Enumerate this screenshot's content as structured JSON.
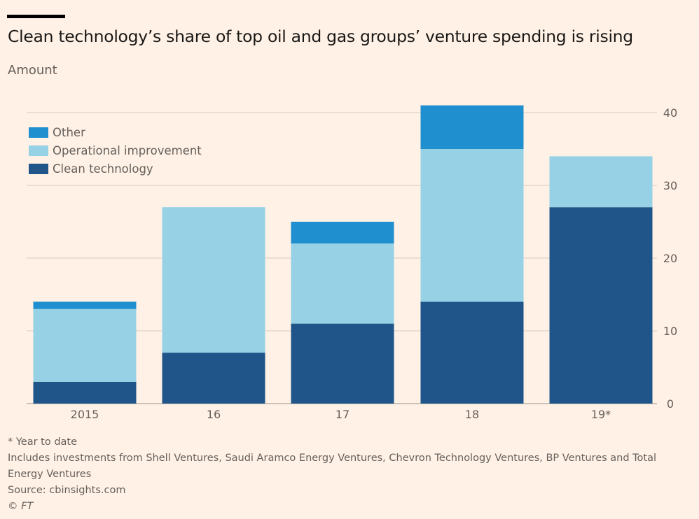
{
  "header": {
    "title": "Clean technology’s share of top oil and gas groups’ venture spending is rising",
    "subtitle": "Amount"
  },
  "legend": [
    {
      "label": "Other",
      "color": "#1f8fcf"
    },
    {
      "label": "Operational improvement",
      "color": "#96d1e6"
    },
    {
      "label": "Clean technology",
      "color": "#1f5589"
    }
  ],
  "notes": {
    "footnote": "* Year to date",
    "includes_line1": "Includes investments from Shell Ventures, Saudi Aramco Energy Ventures, Chevron Technology Ventures, BP Ventures and Total",
    "includes_line2": "Energy Ventures",
    "source": "Source: cbinsights.com",
    "credit": "© FT"
  },
  "chart_data": {
    "type": "bar",
    "stacked": true,
    "title": "Clean technology’s share of top oil and gas groups’ venture spending is rising",
    "ylabel": "Amount",
    "xlabel": "",
    "categories": [
      "2015",
      "16",
      "17",
      "18",
      "19*"
    ],
    "series": [
      {
        "name": "Clean technology",
        "color": "#1f5589",
        "values": [
          3,
          7,
          11,
          14,
          27
        ]
      },
      {
        "name": "Operational improvement",
        "color": "#96d1e6",
        "values": [
          10,
          20,
          11,
          21,
          7
        ]
      },
      {
        "name": "Other",
        "color": "#1f8fcf",
        "values": [
          1,
          0,
          3,
          6,
          0
        ]
      }
    ],
    "ylim": [
      0,
      40
    ],
    "yticks": [
      0,
      10,
      20,
      30,
      40
    ],
    "y_axis_side": "right",
    "grid": true,
    "legend_position": "top-left"
  }
}
